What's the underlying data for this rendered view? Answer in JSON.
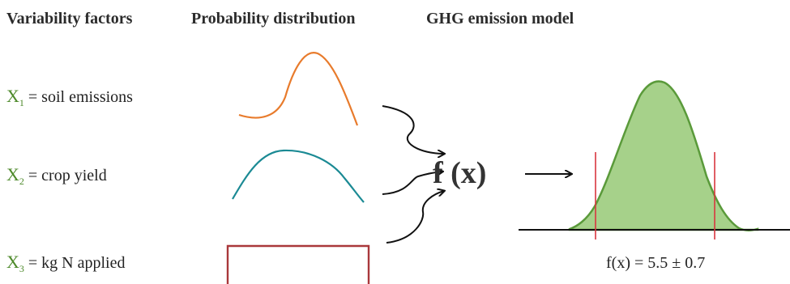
{
  "headers": {
    "variability": "Variability factors",
    "probability": "Probability distribution",
    "model": "GHG emission model"
  },
  "variables": [
    {
      "symbol": "X",
      "index": "1",
      "label": " = soil emissions",
      "distribution_color": "#e87b2c"
    },
    {
      "symbol": "X",
      "index": "2",
      "label": " = crop yield",
      "distribution_color": "#1b8a94"
    },
    {
      "symbol": "X",
      "index": "3",
      "label": " = kg N applied",
      "distribution_color": "#a9383b"
    }
  ],
  "model": {
    "function_label": "f (x)",
    "result_label": "f(x) = 5.5 ± 0.7",
    "fill_color": "#a6d18a",
    "stroke_color": "#5a9a3a",
    "interval_color": "#d9363e"
  }
}
